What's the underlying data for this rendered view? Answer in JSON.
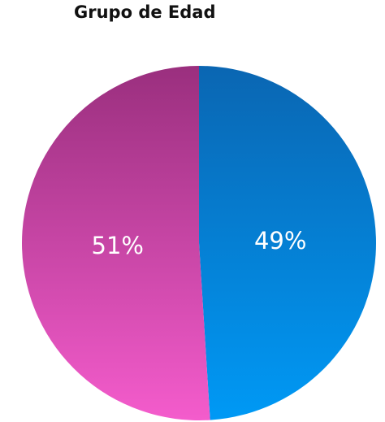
{
  "chart_data": {
    "type": "pie",
    "title": "Grupo de Edad",
    "slices": [
      {
        "label": "49%",
        "value": 49,
        "color_top": "#0a66b2",
        "color_bottom": "#0099f5"
      },
      {
        "label": "51%",
        "value": 51,
        "color_top": "#9a2f7e",
        "color_bottom": "#f45ccc"
      }
    ],
    "start_angle_deg": 0,
    "direction": "clockwise",
    "legend": "none"
  }
}
